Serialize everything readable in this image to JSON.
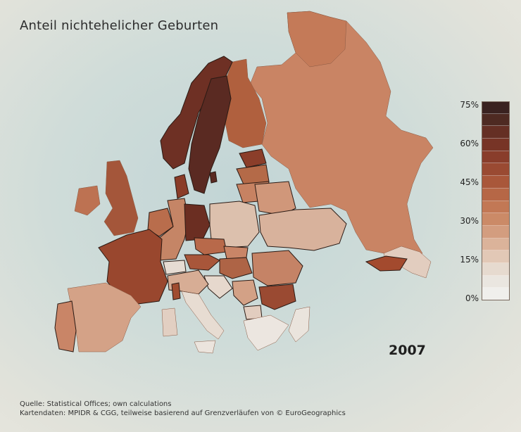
{
  "title": "Anteil nichtehelicher Geburten",
  "year": "2007",
  "source_line1": "Quelle: Statistical Offices; own calculations",
  "source_line2": "Kartendaten: MPIDR & CGG, teilweise basierend auf Grenzverläufen von © EuroGeographics",
  "legend": {
    "labels": [
      "75%",
      "60%",
      "45%",
      "30%",
      "15%",
      "0%"
    ],
    "colors": [
      "#3a2220",
      "#4e2a22",
      "#652f24",
      "#773426",
      "#893d2b",
      "#9a4a32",
      "#a9573a",
      "#b66746",
      "#c27855",
      "#cb8a67",
      "#d39d7f",
      "#dbb39a",
      "#e2c8b6",
      "#e6dacf",
      "#eae6e0",
      "#f0efec"
    ]
  },
  "colors": {
    "sea": "#c8d8d8",
    "border": "#2a1a14"
  }
}
